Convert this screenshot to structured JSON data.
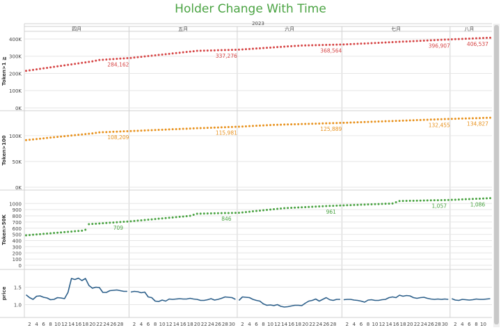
{
  "title": "Holder Change With Time",
  "chart_data": {
    "type": "line",
    "title": "Holder Change With Time",
    "year_label": "2023",
    "months": [
      {
        "label": "四月",
        "start": 1,
        "days": 30
      },
      {
        "label": "五月",
        "start": 31,
        "days": 31
      },
      {
        "label": "六月",
        "start": 62,
        "days": 30
      },
      {
        "label": "七月",
        "start": 92,
        "days": 31
      },
      {
        "label": "八月",
        "start": 123,
        "days": 11
      }
    ],
    "day_ticks": [
      {
        "label": "2",
        "day": 2
      },
      {
        "label": "4",
        "day": 4
      },
      {
        "label": "6",
        "day": 6
      },
      {
        "label": "8",
        "day": 8
      },
      {
        "label": "10",
        "day": 10
      },
      {
        "label": "12",
        "day": 12
      },
      {
        "label": "14",
        "day": 14
      },
      {
        "label": "16",
        "day": 16
      },
      {
        "label": "18",
        "day": 18
      },
      {
        "label": "20",
        "day": 20
      },
      {
        "label": "22",
        "day": 22
      },
      {
        "label": "24",
        "day": 24
      },
      {
        "label": "26",
        "day": 26
      },
      {
        "label": "28",
        "day": 28
      },
      {
        "label": "2",
        "day": 32
      },
      {
        "label": "4",
        "day": 34
      },
      {
        "label": "6",
        "day": 36
      },
      {
        "label": "8",
        "day": 38
      },
      {
        "label": "10",
        "day": 40
      },
      {
        "label": "12",
        "day": 42
      },
      {
        "label": "14",
        "day": 44
      },
      {
        "label": "16",
        "day": 46
      },
      {
        "label": "18",
        "day": 48
      },
      {
        "label": "20",
        "day": 50
      },
      {
        "label": "22",
        "day": 52
      },
      {
        "label": "24",
        "day": 54
      },
      {
        "label": "26",
        "day": 56
      },
      {
        "label": "28",
        "day": 58
      },
      {
        "label": "30",
        "day": 60
      },
      {
        "label": "2",
        "day": 63
      },
      {
        "label": "4",
        "day": 65
      },
      {
        "label": "6",
        "day": 67
      },
      {
        "label": "8",
        "day": 69
      },
      {
        "label": "10",
        "day": 71
      },
      {
        "label": "12",
        "day": 73
      },
      {
        "label": "14",
        "day": 75
      },
      {
        "label": "16",
        "day": 77
      },
      {
        "label": "18",
        "day": 79
      },
      {
        "label": "20",
        "day": 81
      },
      {
        "label": "22",
        "day": 83
      },
      {
        "label": "24",
        "day": 85
      },
      {
        "label": "26",
        "day": 87
      },
      {
        "label": "28",
        "day": 89
      },
      {
        "label": "2",
        "day": 93
      },
      {
        "label": "4",
        "day": 95
      },
      {
        "label": "6",
        "day": 97
      },
      {
        "label": "8",
        "day": 99
      },
      {
        "label": "10",
        "day": 101
      },
      {
        "label": "12",
        "day": 103
      },
      {
        "label": "14",
        "day": 105
      },
      {
        "label": "16",
        "day": 107
      },
      {
        "label": "18",
        "day": 109
      },
      {
        "label": "20",
        "day": 111
      },
      {
        "label": "22",
        "day": 113
      },
      {
        "label": "24",
        "day": 115
      },
      {
        "label": "26",
        "day": 117
      },
      {
        "label": "28",
        "day": 119
      },
      {
        "label": "30",
        "day": 121
      },
      {
        "label": "2",
        "day": 124
      },
      {
        "label": "4",
        "day": 126
      },
      {
        "label": "6",
        "day": 128
      },
      {
        "label": "8",
        "day": 130
      },
      {
        "label": "10",
        "day": 132
      }
    ],
    "panels": [
      {
        "name": "Token>1 ≧",
        "color": "#d64545",
        "mark": "dots",
        "ylim": [
          0,
          420000
        ],
        "ticks": [
          {
            "v": 0,
            "label": "0K"
          },
          {
            "v": 100000,
            "label": "100K"
          },
          {
            "v": 200000,
            "label": "200K"
          },
          {
            "v": 300000,
            "label": "300K"
          },
          {
            "v": 400000,
            "label": "400K"
          }
        ],
        "points": [
          [
            1,
            215000
          ],
          [
            20,
            270000
          ],
          [
            22,
            278000
          ],
          [
            31,
            290000
          ],
          [
            50,
            331000
          ],
          [
            62,
            338000
          ],
          [
            80,
            362000
          ],
          [
            92,
            368000
          ],
          [
            122,
            397000
          ],
          [
            134,
            407000
          ]
        ],
        "labels": [
          {
            "day": 27,
            "text": "284,162"
          },
          {
            "day": 58,
            "text": "337,276"
          },
          {
            "day": 88,
            "text": "368,564"
          },
          {
            "day": 119,
            "text": "396,907"
          },
          {
            "day": 130,
            "text": "406,537"
          }
        ]
      },
      {
        "name": "Token>100",
        "color": "#e8921e",
        "mark": "dots",
        "ylim": [
          0,
          135000
        ],
        "ticks": [
          {
            "v": 0,
            "label": "0K"
          },
          {
            "v": 50000,
            "label": "50K"
          },
          {
            "v": 100000,
            "label": "100K"
          }
        ],
        "points": [
          [
            1,
            91500
          ],
          [
            20,
            104500
          ],
          [
            22,
            106500
          ],
          [
            31,
            109000
          ],
          [
            50,
            114500
          ],
          [
            62,
            117500
          ],
          [
            72,
            121000
          ],
          [
            92,
            125000
          ],
          [
            122,
            132500
          ],
          [
            134,
            134800
          ]
        ],
        "labels": [
          {
            "day": 27,
            "text": "108,209"
          },
          {
            "day": 58,
            "text": "115,981"
          },
          {
            "day": 88,
            "text": "125,889"
          },
          {
            "day": 119,
            "text": "132,455"
          },
          {
            "day": 130,
            "text": "134,827"
          }
        ]
      },
      {
        "name": "Token>50K",
        "color": "#4aa342",
        "mark": "dots",
        "ylim": [
          0,
          1150
        ],
        "ticks": [
          {
            "v": 0,
            "label": "0"
          },
          {
            "v": 100,
            "label": "100"
          },
          {
            "v": 200,
            "label": "200"
          },
          {
            "v": 300,
            "label": "300"
          },
          {
            "v": 400,
            "label": "400"
          },
          {
            "v": 500,
            "label": "500"
          },
          {
            "v": 600,
            "label": "600"
          },
          {
            "v": 700,
            "label": "700"
          },
          {
            "v": 800,
            "label": "800"
          },
          {
            "v": 900,
            "label": "900"
          },
          {
            "v": 1000,
            "label": "1000"
          }
        ],
        "points": [
          [
            1,
            485
          ],
          [
            17,
            560
          ],
          [
            18,
            575
          ],
          [
            19,
            665
          ],
          [
            31,
            712
          ],
          [
            48,
            800
          ],
          [
            50,
            835
          ],
          [
            62,
            850
          ],
          [
            75,
            925
          ],
          [
            88,
            961
          ],
          [
            92,
            970
          ],
          [
            106,
            1000
          ],
          [
            108,
            1040
          ],
          [
            122,
            1057
          ],
          [
            134,
            1086
          ]
        ],
        "labels": [
          {
            "day": 27,
            "text": "709"
          },
          {
            "day": 58,
            "text": "846"
          },
          {
            "day": 88,
            "text": "961"
          },
          {
            "day": 119,
            "text": "1,057"
          },
          {
            "day": 130,
            "text": "1,086"
          }
        ]
      },
      {
        "name": "price",
        "color": "#2c5f8a",
        "mark": "line",
        "ylim": [
          0.75,
          1.85
        ],
        "ticks": [
          {
            "v": 1.0,
            "label": "1.0"
          },
          {
            "v": 1.5,
            "label": "1.5"
          }
        ],
        "points": [
          [
            1,
            1.28
          ],
          [
            2,
            1.2
          ],
          [
            3,
            1.15
          ],
          [
            4,
            1.24
          ],
          [
            5,
            1.25
          ],
          [
            6,
            1.21
          ],
          [
            7,
            1.19
          ],
          [
            8,
            1.14
          ],
          [
            9,
            1.15
          ],
          [
            10,
            1.2
          ],
          [
            11,
            1.19
          ],
          [
            12,
            1.17
          ],
          [
            13,
            1.35
          ],
          [
            14,
            1.75
          ],
          [
            15,
            1.72
          ],
          [
            16,
            1.76
          ],
          [
            17,
            1.69
          ],
          [
            18,
            1.75
          ],
          [
            19,
            1.55
          ],
          [
            20,
            1.47
          ],
          [
            21,
            1.5
          ],
          [
            22,
            1.49
          ],
          [
            23,
            1.35
          ],
          [
            24,
            1.35
          ],
          [
            25,
            1.4
          ],
          [
            26,
            1.41
          ],
          [
            27,
            1.42
          ],
          [
            28,
            1.4
          ],
          [
            29,
            1.38
          ],
          [
            30,
            1.38
          ],
          [
            31,
            1.36
          ],
          [
            32,
            1.38
          ],
          [
            33,
            1.37
          ],
          [
            34,
            1.34
          ],
          [
            35,
            1.36
          ],
          [
            36,
            1.22
          ],
          [
            37,
            1.2
          ],
          [
            38,
            1.1
          ],
          [
            39,
            1.09
          ],
          [
            40,
            1.13
          ],
          [
            41,
            1.1
          ],
          [
            42,
            1.16
          ],
          [
            43,
            1.15
          ],
          [
            44,
            1.16
          ],
          [
            45,
            1.17
          ],
          [
            46,
            1.16
          ],
          [
            47,
            1.16
          ],
          [
            48,
            1.18
          ],
          [
            49,
            1.16
          ],
          [
            50,
            1.15
          ],
          [
            51,
            1.12
          ],
          [
            52,
            1.12
          ],
          [
            53,
            1.14
          ],
          [
            54,
            1.17
          ],
          [
            55,
            1.13
          ],
          [
            56,
            1.15
          ],
          [
            57,
            1.18
          ],
          [
            58,
            1.22
          ],
          [
            59,
            1.21
          ],
          [
            60,
            1.2
          ],
          [
            61,
            1.15
          ],
          [
            62,
            1.12
          ],
          [
            63,
            1.22
          ],
          [
            64,
            1.21
          ],
          [
            65,
            1.2
          ],
          [
            66,
            1.15
          ],
          [
            67,
            1.12
          ],
          [
            68,
            1.1
          ],
          [
            69,
            1.02
          ],
          [
            70,
            0.98
          ],
          [
            71,
            0.99
          ],
          [
            72,
            0.97
          ],
          [
            73,
            1.0
          ],
          [
            74,
            0.95
          ],
          [
            75,
            0.93
          ],
          [
            76,
            0.94
          ],
          [
            77,
            0.96
          ],
          [
            78,
            0.98
          ],
          [
            79,
            0.98
          ],
          [
            80,
            0.97
          ],
          [
            81,
            1.04
          ],
          [
            82,
            1.1
          ],
          [
            83,
            1.12
          ],
          [
            84,
            1.16
          ],
          [
            85,
            1.1
          ],
          [
            86,
            1.15
          ],
          [
            87,
            1.2
          ],
          [
            88,
            1.14
          ],
          [
            89,
            1.12
          ],
          [
            90,
            1.15
          ],
          [
            91,
            1.15
          ],
          [
            92,
            1.14
          ],
          [
            93,
            1.15
          ],
          [
            94,
            1.15
          ],
          [
            95,
            1.13
          ],
          [
            96,
            1.12
          ],
          [
            97,
            1.1
          ],
          [
            98,
            1.07
          ],
          [
            99,
            1.13
          ],
          [
            100,
            1.14
          ],
          [
            101,
            1.12
          ],
          [
            102,
            1.12
          ],
          [
            103,
            1.14
          ],
          [
            104,
            1.15
          ],
          [
            105,
            1.2
          ],
          [
            106,
            1.22
          ],
          [
            107,
            1.2
          ],
          [
            108,
            1.27
          ],
          [
            109,
            1.24
          ],
          [
            110,
            1.26
          ],
          [
            111,
            1.25
          ],
          [
            112,
            1.2
          ],
          [
            113,
            1.18
          ],
          [
            114,
            1.2
          ],
          [
            115,
            1.21
          ],
          [
            116,
            1.18
          ],
          [
            117,
            1.16
          ],
          [
            118,
            1.15
          ],
          [
            119,
            1.16
          ],
          [
            120,
            1.15
          ],
          [
            121,
            1.16
          ],
          [
            122,
            1.15
          ],
          [
            123,
            1.17
          ],
          [
            124,
            1.13
          ],
          [
            125,
            1.12
          ],
          [
            126,
            1.15
          ],
          [
            127,
            1.14
          ],
          [
            128,
            1.13
          ],
          [
            129,
            1.14
          ],
          [
            130,
            1.16
          ],
          [
            131,
            1.15
          ],
          [
            132,
            1.15
          ],
          [
            133,
            1.16
          ],
          [
            134,
            1.17
          ]
        ]
      }
    ],
    "colors": {
      "grid": "#e6e6e6",
      "divider": "#d0d0d0",
      "axis_text": "#444444"
    }
  }
}
